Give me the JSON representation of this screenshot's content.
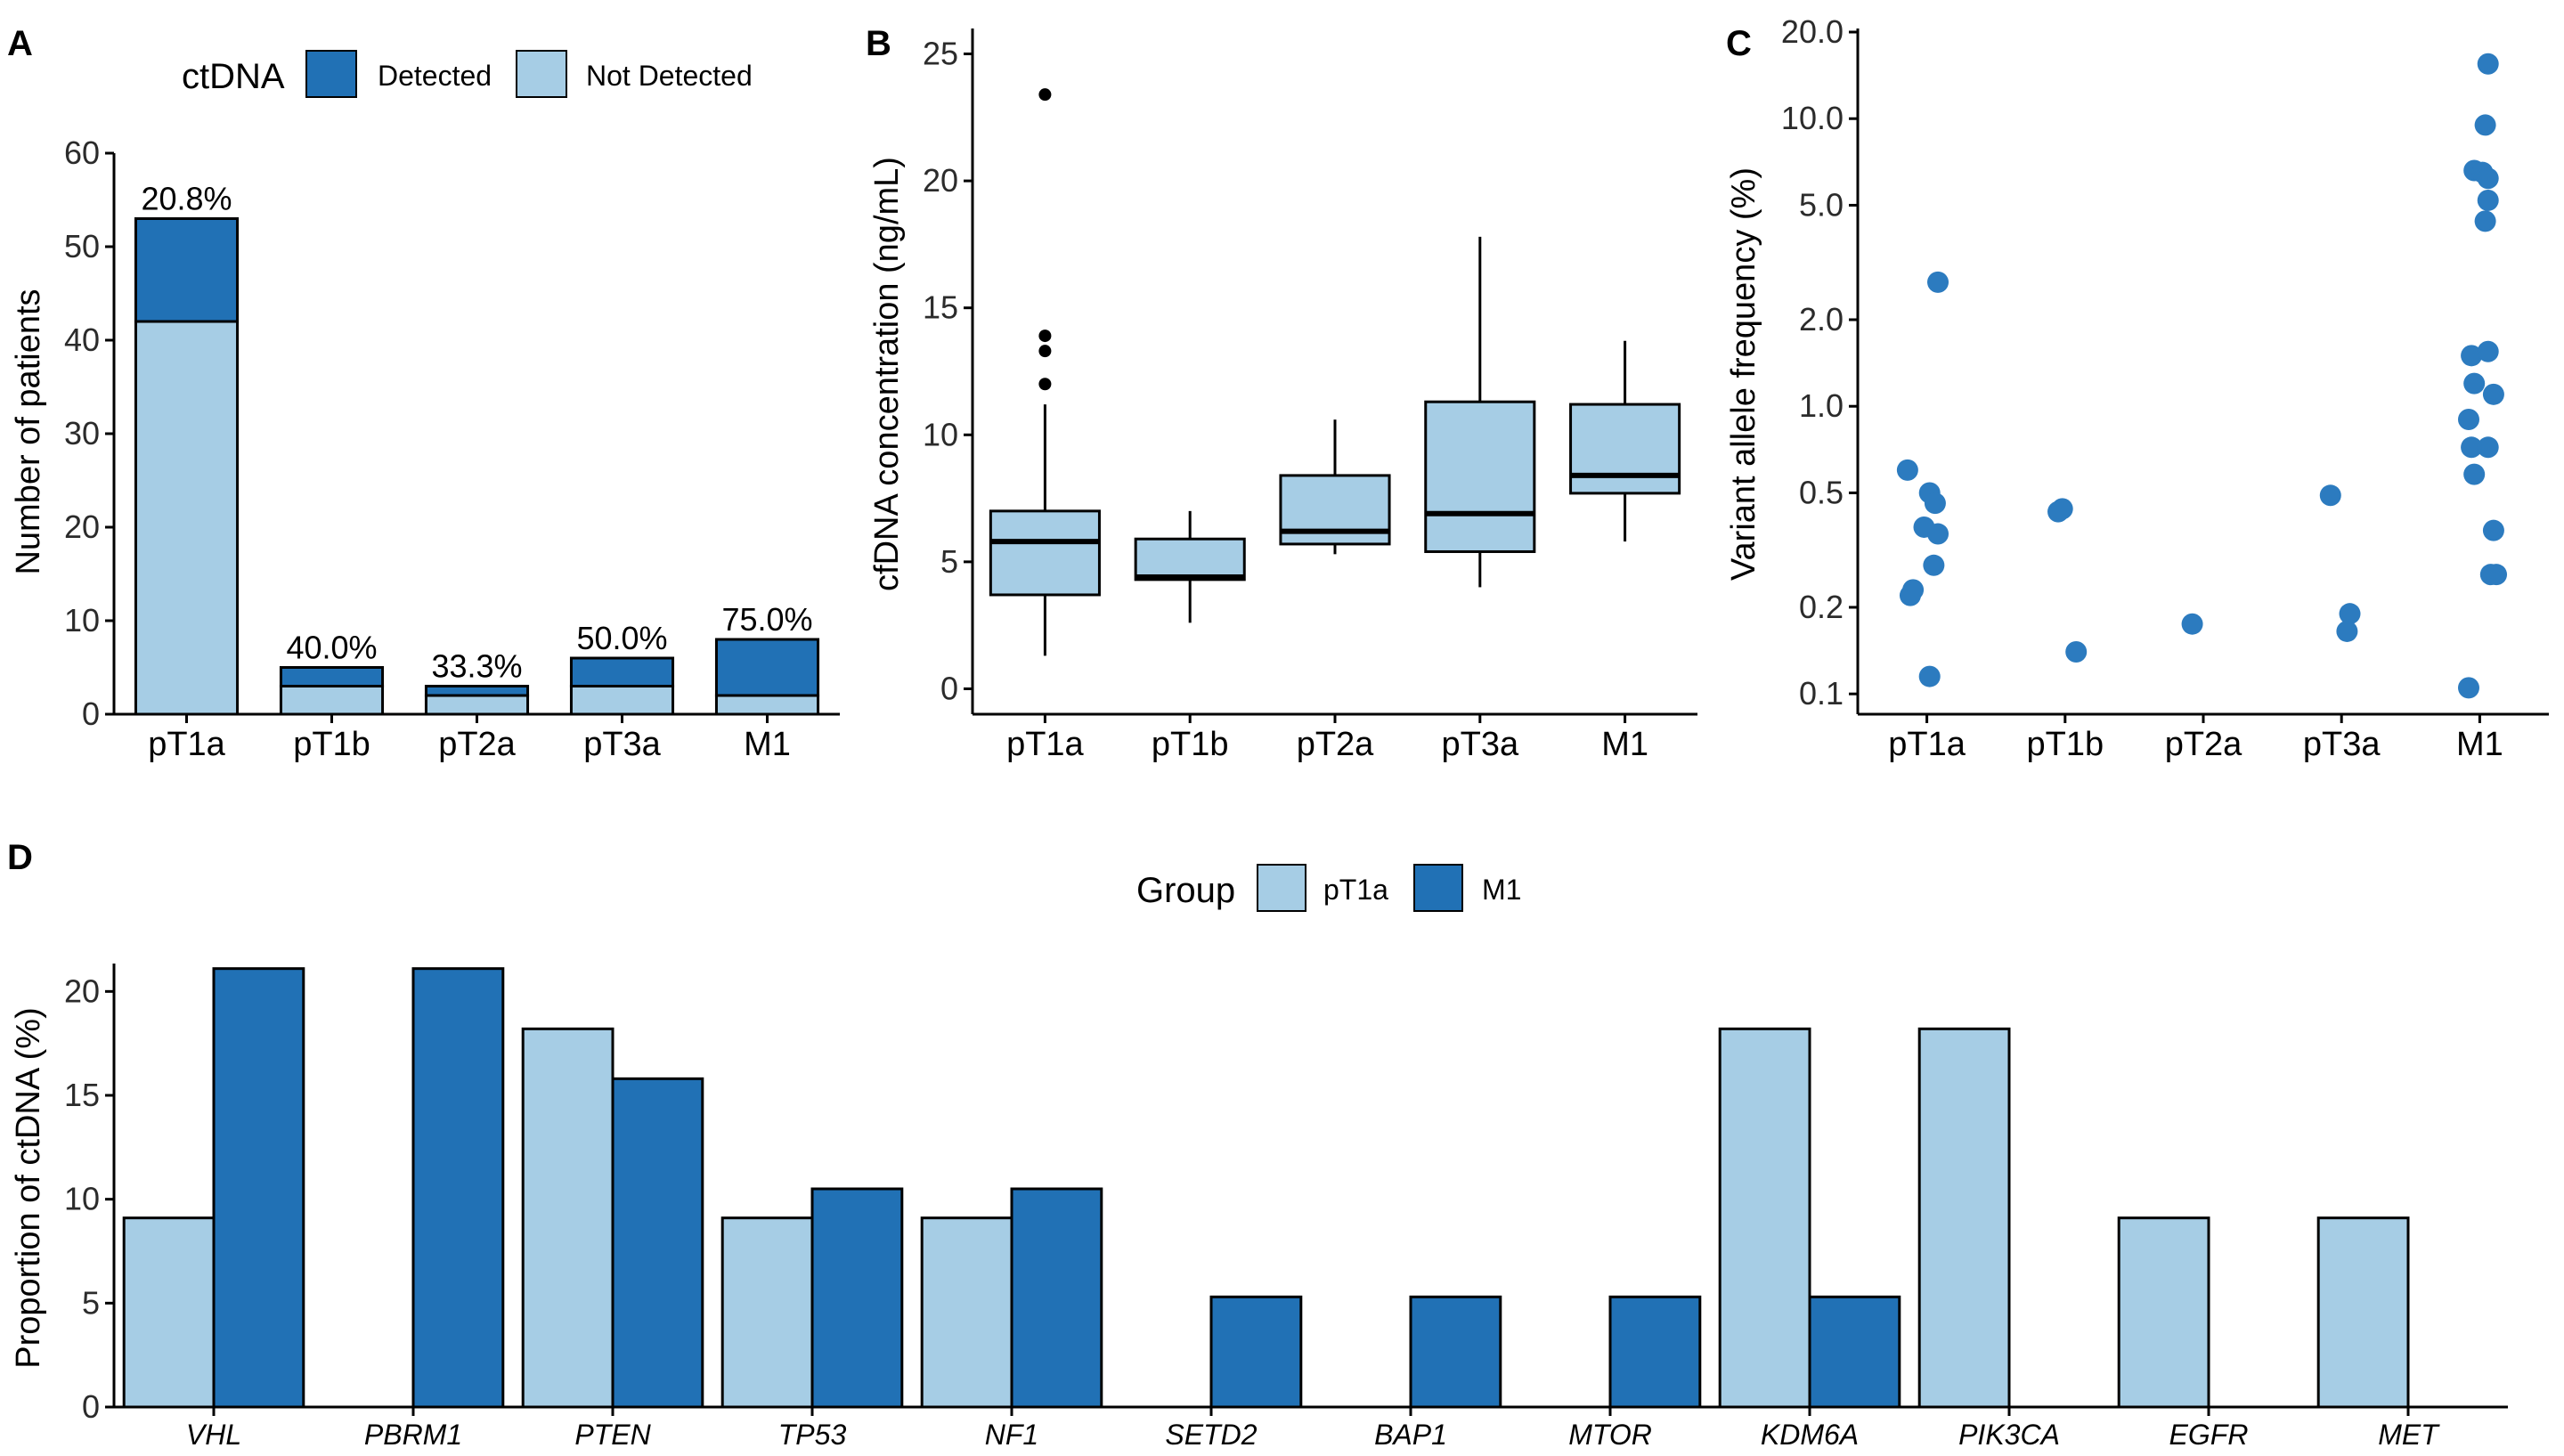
{
  "colors": {
    "detected": "#2171b5",
    "not_detected": "#a6cde5",
    "point": "#2c7bbf",
    "box_fill": "#a6cde5"
  },
  "chart_data": [
    {
      "panel": "A",
      "type": "bar",
      "stacked": true,
      "ylabel": "Number of patients",
      "ylim": [
        0,
        60
      ],
      "yticks": [
        0,
        10,
        20,
        30,
        40,
        50,
        60
      ],
      "legend": {
        "title": "ctDNA",
        "position": "top",
        "entries": [
          "Detected",
          "Not Detected"
        ]
      },
      "categories": [
        "pT1a",
        "pT1b",
        "pT2a",
        "pT3a",
        "M1"
      ],
      "series": [
        {
          "name": "Not Detected",
          "values": [
            42,
            3,
            2,
            3,
            2
          ]
        },
        {
          "name": "Detected",
          "values": [
            11,
            2,
            1,
            3,
            6
          ]
        }
      ],
      "labels": [
        "20.8%",
        "40.0%",
        "33.3%",
        "50.0%",
        "75.0%"
      ]
    },
    {
      "panel": "B",
      "type": "box",
      "ylabel": "cfDNA concentration (ng/mL)",
      "ylim": [
        -1,
        26
      ],
      "yticks": [
        0,
        5,
        10,
        15,
        20,
        25
      ],
      "categories": [
        "pT1a",
        "pT1b",
        "pT2a",
        "pT3a",
        "M1"
      ],
      "boxes": [
        {
          "min": 1.3,
          "q1": 3.7,
          "median": 5.8,
          "q3": 7.0,
          "max": 11.2,
          "outliers": [
            12.0,
            13.3,
            13.9,
            23.4
          ]
        },
        {
          "min": 2.6,
          "q1": 4.3,
          "median": 4.4,
          "q3": 5.9,
          "max": 7.0,
          "outliers": []
        },
        {
          "min": 5.3,
          "q1": 5.7,
          "median": 6.2,
          "q3": 8.4,
          "max": 10.6,
          "outliers": []
        },
        {
          "min": 4.0,
          "q1": 5.4,
          "median": 6.9,
          "q3": 11.3,
          "max": 17.8,
          "outliers": []
        },
        {
          "min": 5.8,
          "q1": 7.7,
          "median": 8.4,
          "q3": 11.2,
          "max": 13.7,
          "outliers": []
        }
      ]
    },
    {
      "panel": "C",
      "type": "scatter",
      "yscale": "log",
      "ylabel": "Variant allele frequency (%)",
      "ylim": [
        0.085,
        20
      ],
      "yticks": [
        0.1,
        0.2,
        0.5,
        1.0,
        2.0,
        5.0,
        10.0,
        20.0
      ],
      "ytick_labels": [
        "0.1",
        "0.2",
        "0.5",
        "1.0",
        "2.0",
        "5.0",
        "10.0",
        "20.0"
      ],
      "categories": [
        "pT1a",
        "pT1b",
        "pT2a",
        "pT3a",
        "M1"
      ],
      "points": [
        {
          "cat": 0,
          "dx": -0.14,
          "y": 0.6
        },
        {
          "cat": 0,
          "dx": 0.08,
          "y": 2.7
        },
        {
          "cat": 0,
          "dx": 0.02,
          "y": 0.5
        },
        {
          "cat": 0,
          "dx": 0.06,
          "y": 0.46
        },
        {
          "cat": 0,
          "dx": -0.02,
          "y": 0.38
        },
        {
          "cat": 0,
          "dx": 0.08,
          "y": 0.36
        },
        {
          "cat": 0,
          "dx": 0.05,
          "y": 0.28
        },
        {
          "cat": 0,
          "dx": -0.1,
          "y": 0.23
        },
        {
          "cat": 0,
          "dx": -0.12,
          "y": 0.22
        },
        {
          "cat": 0,
          "dx": 0.02,
          "y": 0.115
        },
        {
          "cat": 1,
          "dx": -0.05,
          "y": 0.43
        },
        {
          "cat": 1,
          "dx": -0.02,
          "y": 0.44
        },
        {
          "cat": 1,
          "dx": 0.08,
          "y": 0.14
        },
        {
          "cat": 2,
          "dx": -0.08,
          "y": 0.175
        },
        {
          "cat": 3,
          "dx": -0.08,
          "y": 0.49
        },
        {
          "cat": 3,
          "dx": 0.06,
          "y": 0.19
        },
        {
          "cat": 3,
          "dx": 0.04,
          "y": 0.165
        },
        {
          "cat": 4,
          "dx": 0.06,
          "y": 15.5
        },
        {
          "cat": 4,
          "dx": 0.04,
          "y": 9.5
        },
        {
          "cat": 4,
          "dx": -0.04,
          "y": 6.6
        },
        {
          "cat": 4,
          "dx": 0.02,
          "y": 6.5
        },
        {
          "cat": 4,
          "dx": 0.06,
          "y": 6.2
        },
        {
          "cat": 4,
          "dx": 0.06,
          "y": 5.2
        },
        {
          "cat": 4,
          "dx": 0.04,
          "y": 4.4
        },
        {
          "cat": 4,
          "dx": -0.06,
          "y": 1.5
        },
        {
          "cat": 4,
          "dx": 0.06,
          "y": 1.55
        },
        {
          "cat": 4,
          "dx": -0.04,
          "y": 1.2
        },
        {
          "cat": 4,
          "dx": 0.1,
          "y": 1.1
        },
        {
          "cat": 4,
          "dx": -0.08,
          "y": 0.9
        },
        {
          "cat": 4,
          "dx": -0.06,
          "y": 0.72
        },
        {
          "cat": 4,
          "dx": 0.06,
          "y": 0.72
        },
        {
          "cat": 4,
          "dx": -0.04,
          "y": 0.58
        },
        {
          "cat": 4,
          "dx": 0.1,
          "y": 0.37
        },
        {
          "cat": 4,
          "dx": 0.08,
          "y": 0.26
        },
        {
          "cat": 4,
          "dx": 0.12,
          "y": 0.26
        },
        {
          "cat": 4,
          "dx": -0.08,
          "y": 0.105
        }
      ]
    },
    {
      "panel": "D",
      "type": "bar",
      "grouped": true,
      "ylabel": "Proportion of ctDNA (%)",
      "ylim": [
        0,
        21
      ],
      "yticks": [
        0,
        5,
        10,
        15,
        20
      ],
      "legend": {
        "title": "Group",
        "position": "top",
        "entries": [
          "pT1a",
          "M1"
        ]
      },
      "categories": [
        "VHL",
        "PBRM1",
        "PTEN",
        "TP53",
        "NF1",
        "SETD2",
        "BAP1",
        "MTOR",
        "KDM6A",
        "PIK3CA",
        "EGFR",
        "MET"
      ],
      "series": [
        {
          "name": "pT1a",
          "values": [
            9.1,
            0,
            18.2,
            9.1,
            9.1,
            0,
            0,
            0,
            18.2,
            18.2,
            9.1,
            9.1
          ]
        },
        {
          "name": "M1",
          "values": [
            21.1,
            21.1,
            15.8,
            10.5,
            10.5,
            5.3,
            5.3,
            5.3,
            5.3,
            0,
            0,
            0
          ]
        }
      ]
    }
  ]
}
